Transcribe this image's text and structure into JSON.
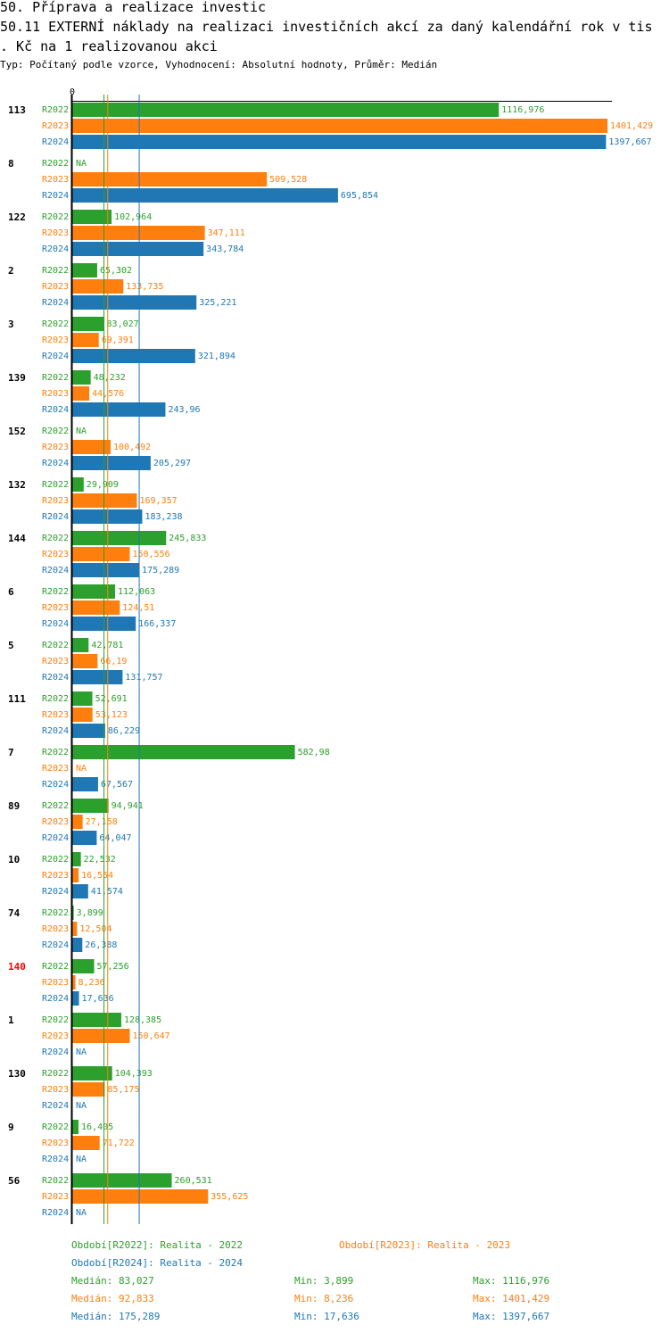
{
  "header": {
    "title_line1": "50. Příprava a realizace investic",
    "title_line2": "50.11 EXTERNÍ náklady na realizaci investičních akcí za daný kalendářní rok v tis",
    "title_line3": ". Kč na 1 realizovanou akci",
    "subtitle": "Typ: Počítaný podle vzorce, Vyhodnocení: Absolutní hodnoty, Průměr: Medián"
  },
  "colors": {
    "R2022": "#2ca02c",
    "R2023": "#ff7f0e",
    "R2024": "#1f77b4",
    "highlight": "#ff0000",
    "text": "#000000"
  },
  "chart_data": {
    "type": "bar",
    "orientation": "horizontal",
    "axis_zero_label": "0",
    "xlim": [
      0,
      1401.429
    ],
    "na_label": "NA",
    "series_names": [
      "R2022",
      "R2023",
      "R2024"
    ],
    "categories": [
      {
        "label": "113",
        "highlight": false,
        "values": [
          1116.976,
          1401.429,
          1397.667
        ],
        "labels": [
          "1116,976",
          "1401,429",
          "1397,667"
        ]
      },
      {
        "label": "8",
        "highlight": false,
        "values": [
          null,
          509.528,
          695.854
        ],
        "labels": [
          "NA",
          "509,528",
          "695,854"
        ]
      },
      {
        "label": "122",
        "highlight": false,
        "values": [
          102.964,
          347.111,
          343.784
        ],
        "labels": [
          "102,964",
          "347,111",
          "343,784"
        ]
      },
      {
        "label": "2",
        "highlight": false,
        "values": [
          65.302,
          133.735,
          325.221
        ],
        "labels": [
          "65,302",
          "133,735",
          "325,221"
        ]
      },
      {
        "label": "3",
        "highlight": false,
        "values": [
          83.027,
          69.391,
          321.894
        ],
        "labels": [
          "83,027",
          "69,391",
          "321,894"
        ]
      },
      {
        "label": "139",
        "highlight": false,
        "values": [
          48.232,
          44.576,
          243.96
        ],
        "labels": [
          "48,232",
          "44,576",
          "243,96"
        ]
      },
      {
        "label": "152",
        "highlight": false,
        "values": [
          null,
          100.492,
          205.297
        ],
        "labels": [
          "NA",
          "100,492",
          "205,297"
        ]
      },
      {
        "label": "132",
        "highlight": false,
        "values": [
          29.909,
          169.357,
          183.238
        ],
        "labels": [
          "29,909",
          "169,357",
          "183,238"
        ]
      },
      {
        "label": "144",
        "highlight": false,
        "values": [
          245.833,
          150.556,
          175.289
        ],
        "labels": [
          "245,833",
          "150,556",
          "175,289"
        ]
      },
      {
        "label": "6",
        "highlight": false,
        "values": [
          112.063,
          124.51,
          166.337
        ],
        "labels": [
          "112,063",
          "124,51",
          "166,337"
        ]
      },
      {
        "label": "5",
        "highlight": false,
        "values": [
          42.781,
          66.19,
          131.757
        ],
        "labels": [
          "42,781",
          "66,19",
          "131,757"
        ]
      },
      {
        "label": "111",
        "highlight": false,
        "values": [
          52.691,
          53.123,
          86.229
        ],
        "labels": [
          "52,691",
          "53,123",
          "86,229"
        ]
      },
      {
        "label": "7",
        "highlight": false,
        "values": [
          582.98,
          null,
          67.567
        ],
        "labels": [
          "582,98",
          "NA",
          "67,567"
        ]
      },
      {
        "label": "89",
        "highlight": false,
        "values": [
          94.941,
          27.158,
          64.047
        ],
        "labels": [
          "94,941",
          "27,158",
          "64,047"
        ]
      },
      {
        "label": "10",
        "highlight": false,
        "values": [
          22.532,
          16.554,
          41.574
        ],
        "labels": [
          "22,532",
          "16,554",
          "41,574"
        ]
      },
      {
        "label": "74",
        "highlight": false,
        "values": [
          3.899,
          12.504,
          26.388
        ],
        "labels": [
          "3,899",
          "12,504",
          "26,388"
        ]
      },
      {
        "label": "140",
        "highlight": true,
        "values": [
          57.256,
          8.236,
          17.636
        ],
        "labels": [
          "57,256",
          "8,236",
          "17,636"
        ]
      },
      {
        "label": "1",
        "highlight": false,
        "values": [
          128.385,
          150.647,
          null
        ],
        "labels": [
          "128,385",
          "150,647",
          "NA"
        ]
      },
      {
        "label": "130",
        "highlight": false,
        "values": [
          104.393,
          85.175,
          null
        ],
        "labels": [
          "104,393",
          "85,175",
          "NA"
        ]
      },
      {
        "label": "9",
        "highlight": false,
        "values": [
          16.405,
          71.722,
          null
        ],
        "labels": [
          "16,405",
          "71,722",
          "NA"
        ]
      },
      {
        "label": "56",
        "highlight": false,
        "values": [
          260.531,
          355.625,
          null
        ],
        "labels": [
          "260,531",
          "355,625",
          "NA"
        ]
      }
    ],
    "median_lines": [
      83.027,
      92.833,
      175.289
    ]
  },
  "legend": {
    "period_r2022": "Období[R2022]: Realita - 2022",
    "period_r2023": "Období[R2023]: Realita - 2023",
    "period_r2024": "Období[R2024]: Realita - 2024",
    "stats": [
      {
        "median": "Medián: 83,027",
        "min": "Min: 3,899",
        "max": "Max: 1116,976"
      },
      {
        "median": "Medián: 92,833",
        "min": "Min: 8,236",
        "max": "Max: 1401,429"
      },
      {
        "median": "Medián: 175,289",
        "min": "Min: 17,636",
        "max": "Max: 1397,667"
      }
    ]
  }
}
